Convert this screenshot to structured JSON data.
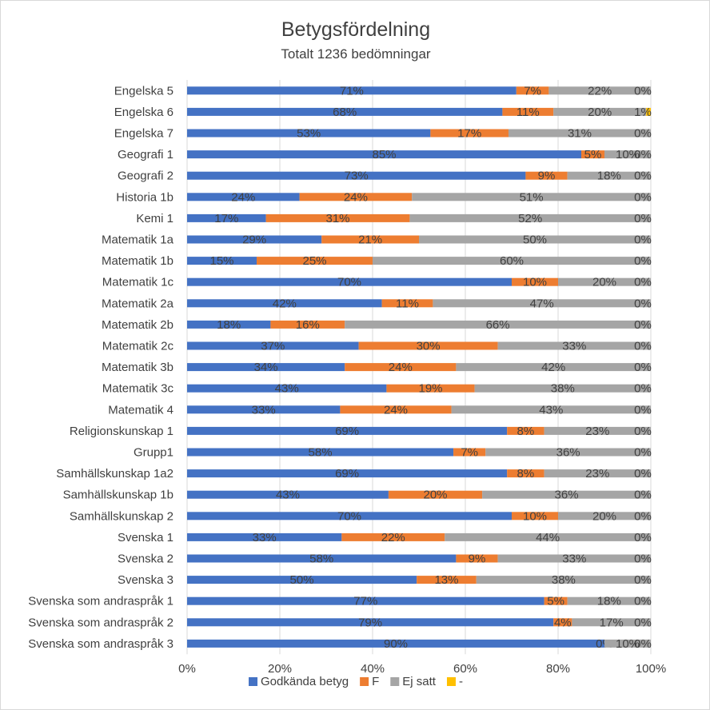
{
  "chart_data": {
    "type": "bar",
    "orientation": "horizontal",
    "stacked": "percent",
    "title": "Betygsfördelning",
    "subtitle": "Totalt 1236 bedömningar",
    "xlim": [
      0,
      100
    ],
    "x_ticks": [
      "0%",
      "20%",
      "40%",
      "60%",
      "80%",
      "100%"
    ],
    "grid": true,
    "legend_position": "bottom",
    "categories": [
      "Engelska 5",
      "Engelska 6",
      "Engelska 7",
      "Geografi 1",
      "Geografi 2",
      "Historia 1b",
      "Kemi 1",
      "Matematik 1a",
      "Matematik 1b",
      "Matematik 1c",
      "Matematik 2a",
      "Matematik 2b",
      "Matematik 2c",
      "Matematik 3b",
      "Matematik 3c",
      "Matematik 4",
      "Religionskunskap 1",
      "Grupp1",
      "Samhällskunskap 1a2",
      "Samhällskunskap 1b",
      "Samhällskunskap 2",
      "Svenska 1",
      "Svenska 2",
      "Svenska 3",
      "Svenska som andraspråk 1",
      "Svenska som andraspråk 2",
      "Svenska som andraspråk 3"
    ],
    "series": [
      {
        "name": "Godkända betyg",
        "color": "#4472c4",
        "values": [
          71,
          68,
          53,
          85,
          73,
          24,
          17,
          29,
          15,
          70,
          42,
          18,
          37,
          34,
          43,
          33,
          69,
          58,
          69,
          43,
          70,
          33,
          58,
          50,
          77,
          79,
          90
        ],
        "labels": [
          "71%",
          "68%",
          "53%",
          "85%",
          "73%",
          "24%",
          "17%",
          "29%",
          "15%",
          "70%",
          "42%",
          "18%",
          "37%",
          "34%",
          "43%",
          "33%",
          "69%",
          "58%",
          "69%",
          "43%",
          "70%",
          "33%",
          "58%",
          "50%",
          "77%",
          "79%",
          "90%"
        ]
      },
      {
        "name": "F",
        "color": "#ed7d31",
        "values": [
          7,
          11,
          17,
          5,
          9,
          24,
          31,
          21,
          25,
          10,
          11,
          16,
          30,
          24,
          19,
          24,
          8,
          7,
          8,
          20,
          10,
          22,
          9,
          13,
          5,
          4,
          0
        ],
        "labels": [
          "7%",
          "11%",
          "17%",
          "5%",
          "9%",
          "24%",
          "31%",
          "21%",
          "25%",
          "10%",
          "11%",
          "16%",
          "30%",
          "24%",
          "19%",
          "24%",
          "8%",
          "7%",
          "8%",
          "20%",
          "10%",
          "22%",
          "9%",
          "13%",
          "5%",
          "4%",
          "0%"
        ]
      },
      {
        "name": "Ej satt",
        "color": "#a5a5a5",
        "values": [
          22,
          20,
          31,
          10,
          18,
          51,
          52,
          50,
          60,
          20,
          47,
          66,
          33,
          42,
          38,
          43,
          23,
          36,
          23,
          36,
          20,
          44,
          33,
          38,
          18,
          17,
          10
        ],
        "labels": [
          "22%",
          "20%",
          "31%",
          "10%",
          "18%",
          "51%",
          "52%",
          "50%",
          "60%",
          "20%",
          "47%",
          "66%",
          "33%",
          "42%",
          "38%",
          "43%",
          "23%",
          "36%",
          "23%",
          "36%",
          "20%",
          "44%",
          "33%",
          "38%",
          "18%",
          "17%",
          "10%"
        ]
      },
      {
        "name": "-",
        "color": "#ffc000",
        "values": [
          0,
          1,
          0,
          0,
          0,
          0,
          0,
          0,
          0,
          0,
          0,
          0,
          0,
          0,
          0,
          0,
          0,
          0,
          0,
          0,
          0,
          0,
          0,
          0,
          0,
          0,
          0
        ],
        "labels": [
          "0%",
          "1%",
          "0%",
          "0%",
          "0%",
          "0%",
          "0%",
          "0%",
          "0%",
          "0%",
          "0%",
          "0%",
          "0%",
          "0%",
          "0%",
          "0%",
          "0%",
          "0%",
          "0%",
          "0%",
          "0%",
          "0%",
          "0%",
          "0%",
          "0%",
          "0%",
          "0%"
        ]
      }
    ]
  }
}
